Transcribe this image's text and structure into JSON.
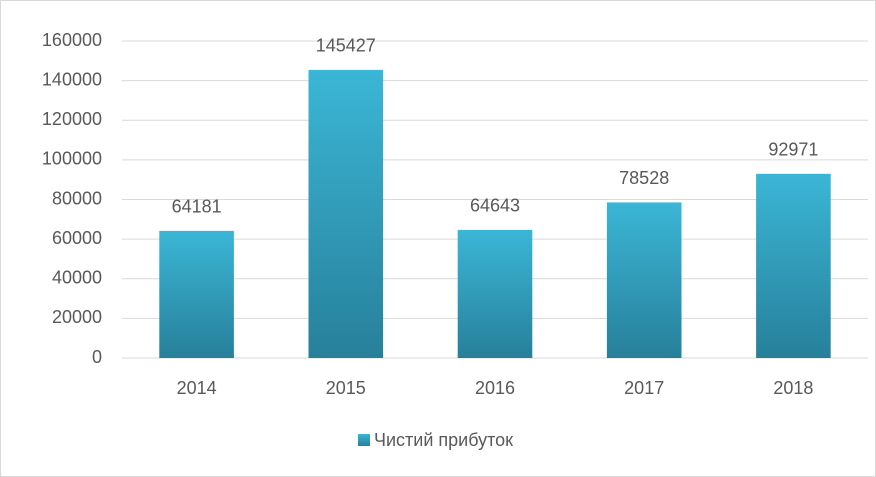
{
  "chart_data": {
    "type": "bar",
    "categories": [
      "2014",
      "2015",
      "2016",
      "2017",
      "2018"
    ],
    "series": [
      {
        "name": "Чистий прибуток",
        "color": "#3bb6d6",
        "values": [
          64181,
          145427,
          64643,
          78528,
          92971
        ]
      }
    ],
    "ylim": [
      0,
      160000
    ],
    "yticks": [
      0,
      20000,
      40000,
      60000,
      80000,
      100000,
      120000,
      140000,
      160000
    ],
    "grid": true,
    "legend": "bottom"
  }
}
